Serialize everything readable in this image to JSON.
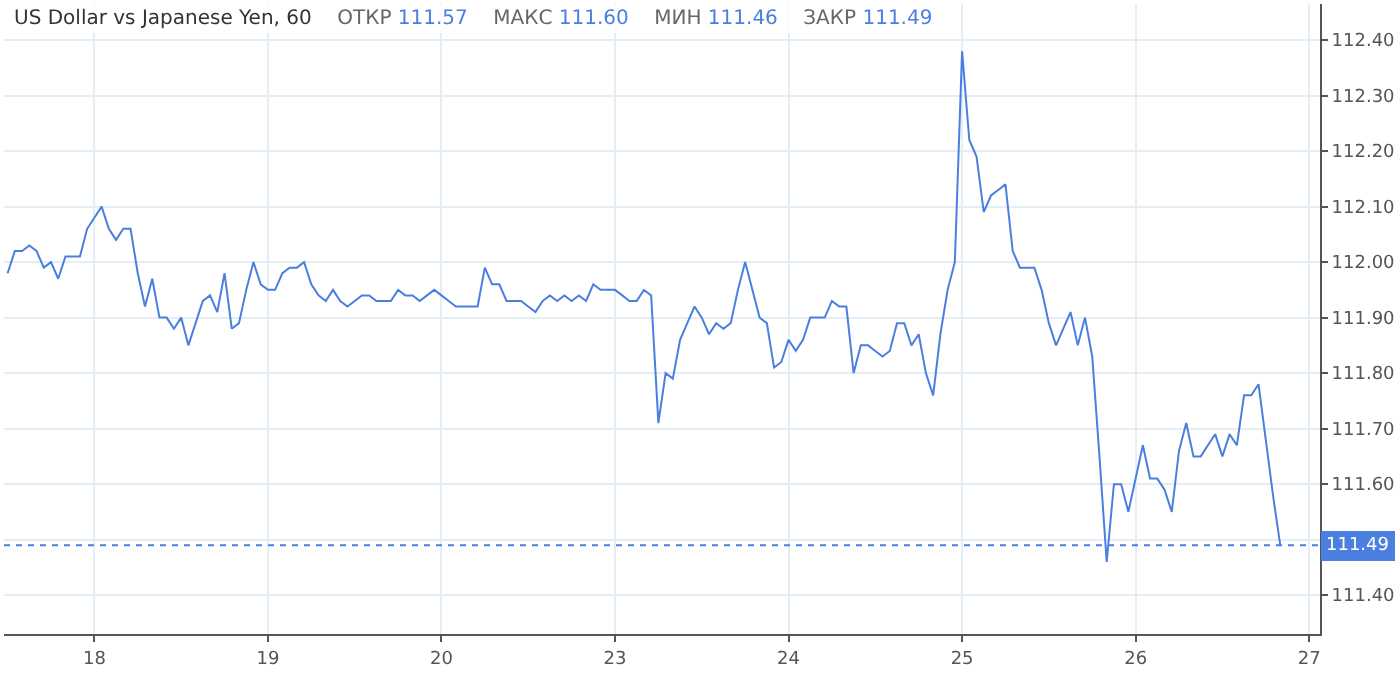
{
  "chart_data": {
    "type": "line",
    "title": "US Dollar vs Japanese Yen, 60",
    "annotations": [
      "ОТКР 111.57",
      "МАКС 111.60",
      "МИН 111.46",
      "ЗАКР 111.49"
    ],
    "categories": [
      null,
      null,
      null,
      null,
      null,
      null,
      null,
      null,
      null,
      null,
      null,
      null,
      "18",
      null,
      null,
      null,
      null,
      null,
      null,
      null,
      null,
      null,
      null,
      null,
      null,
      null,
      null,
      null,
      null,
      null,
      null,
      null,
      null,
      null,
      null,
      null,
      "19",
      null,
      null,
      null,
      null,
      null,
      null,
      null,
      null,
      null,
      null,
      null,
      null,
      null,
      null,
      null,
      null,
      null,
      null,
      null,
      null,
      null,
      null,
      null,
      "20",
      null,
      null,
      null,
      null,
      null,
      null,
      null,
      null,
      null,
      null,
      null,
      null,
      null,
      null,
      null,
      null,
      null,
      null,
      null,
      null,
      null,
      null,
      null,
      "23",
      null,
      null,
      null,
      null,
      null,
      null,
      null,
      null,
      null,
      null,
      null,
      null,
      null,
      null,
      null,
      null,
      null,
      null,
      null,
      null,
      null,
      null,
      null,
      "24",
      null,
      null,
      null,
      null,
      null,
      null,
      null,
      null,
      null,
      null,
      null,
      null,
      null,
      null,
      null,
      null,
      null,
      null,
      null,
      null,
      null,
      null,
      null,
      "25",
      null,
      null,
      null,
      null,
      null,
      null,
      null,
      null,
      null,
      null,
      null,
      null,
      null,
      null,
      null,
      null,
      null,
      null,
      null,
      null,
      null,
      null,
      null,
      "26",
      null,
      null,
      null,
      null,
      null,
      null,
      null,
      null,
      null,
      null,
      null,
      null,
      null,
      null,
      null,
      null,
      null,
      null,
      null,
      null,
      null,
      null,
      null,
      "27",
      null
    ],
    "series": [
      {
        "color": "#4a7fe0",
        "values": [
          111.98,
          112.02,
          112.02,
          112.03,
          112.02,
          111.99,
          112.0,
          111.97,
          112.01,
          112.01,
          112.01,
          112.06,
          112.08,
          112.1,
          112.06,
          112.04,
          112.06,
          112.06,
          111.98,
          111.92,
          111.97,
          111.9,
          111.9,
          111.88,
          111.9,
          111.85,
          111.89,
          111.93,
          111.94,
          111.91,
          111.98,
          111.88,
          111.89,
          111.95,
          112.0,
          111.96,
          111.95,
          111.95,
          111.98,
          111.99,
          111.99,
          112.0,
          111.96,
          111.94,
          111.93,
          111.95,
          111.93,
          111.92,
          111.93,
          111.94,
          111.94,
          111.93,
          111.93,
          111.93,
          111.95,
          111.94,
          111.94,
          111.93,
          111.94,
          111.95,
          111.94,
          111.93,
          111.92,
          111.92,
          111.92,
          111.92,
          111.99,
          111.96,
          111.96,
          111.93,
          111.93,
          111.93,
          111.92,
          111.91,
          111.93,
          111.94,
          111.93,
          111.94,
          111.93,
          111.94,
          111.93,
          111.96,
          111.95,
          111.95,
          111.95,
          111.94,
          111.93,
          111.93,
          111.95,
          111.94,
          111.71,
          111.8,
          111.79,
          111.86,
          111.89,
          111.92,
          111.9,
          111.87,
          111.89,
          111.88,
          111.89,
          111.95,
          112.0,
          111.95,
          111.9,
          111.89,
          111.81,
          111.82,
          111.86,
          111.84,
          111.86,
          111.9,
          111.9,
          111.9,
          111.93,
          111.92,
          111.92,
          111.8,
          111.85,
          111.85,
          111.84,
          111.83,
          111.84,
          111.89,
          111.89,
          111.85,
          111.87,
          111.8,
          111.76,
          111.87,
          111.95,
          112.0,
          112.38,
          112.22,
          112.19,
          112.09,
          112.12,
          112.13,
          112.14,
          112.02,
          111.99,
          111.99,
          111.99,
          111.95,
          111.89,
          111.85,
          111.88,
          111.91,
          111.85,
          111.9,
          111.83,
          111.65,
          111.46,
          111.6,
          111.6,
          111.55,
          111.61,
          111.67,
          111.61,
          111.61,
          111.59,
          111.55,
          111.66,
          111.71,
          111.65,
          111.65,
          111.67,
          111.69,
          111.65,
          111.69,
          111.67,
          111.76,
          111.76,
          111.78,
          111.68,
          111.58,
          111.49,
          null,
          null,
          null,
          null,
          null
        ]
      }
    ],
    "ylim": [
      111.33,
      112.465
    ],
    "yticks": [
      {
        "value": 111.4,
        "label": "111.40"
      },
      {
        "value": 111.5,
        "label": null
      },
      {
        "value": 111.6,
        "label": "111.60"
      },
      {
        "value": 111.7,
        "label": "111.70"
      },
      {
        "value": 111.8,
        "label": "111.80"
      },
      {
        "value": 111.9,
        "label": "111.90"
      },
      {
        "value": 112.0,
        "label": "112.00"
      },
      {
        "value": 112.1,
        "label": "112.10"
      },
      {
        "value": 112.2,
        "label": "112.20"
      },
      {
        "value": 112.3,
        "label": "112.30"
      },
      {
        "value": 112.4,
        "label": "112.40"
      }
    ],
    "ref_lines": [
      {
        "axis": "y",
        "value": 111.49,
        "label": "111.49",
        "color": "#4a7fe0",
        "line_style": "dotted"
      }
    ],
    "grid": true,
    "marker": "none",
    "line_style": "solid"
  }
}
